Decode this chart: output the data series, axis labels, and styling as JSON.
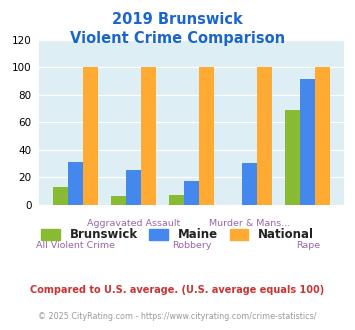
{
  "title_line1": "2019 Brunswick",
  "title_line2": "Violent Crime Comparison",
  "categories": [
    "All Violent Crime",
    "Aggravated Assault",
    "Robbery",
    "Murder & Mans...",
    "Rape"
  ],
  "brunswick": [
    13,
    6,
    7,
    0,
    69
  ],
  "maine": [
    31,
    25,
    17,
    30,
    91
  ],
  "national": [
    100,
    100,
    100,
    100,
    100
  ],
  "brunswick_color": "#88bb33",
  "maine_color": "#4488ee",
  "national_color": "#ffaa33",
  "ylim": [
    0,
    120
  ],
  "yticks": [
    0,
    20,
    40,
    60,
    80,
    100,
    120
  ],
  "bg_color": "#ddeef4",
  "title_color": "#1a66cc",
  "label_color": "#9966aa",
  "legend_text_color": "#222222",
  "footnote1": "Compared to U.S. average. (U.S. average equals 100)",
  "footnote2": "© 2025 CityRating.com - https://www.cityrating.com/crime-statistics/",
  "footnote1_color": "#cc3333",
  "footnote2_color": "#999999",
  "bar_width": 0.26
}
